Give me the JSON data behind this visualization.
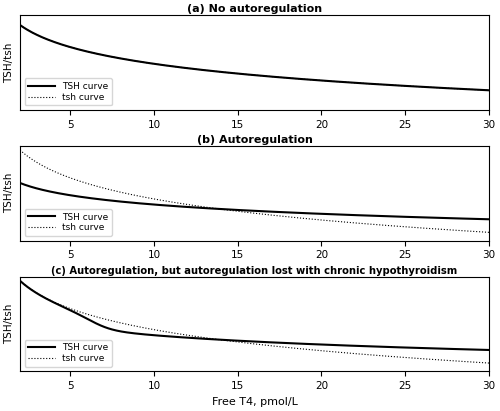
{
  "title_a": "(a) No autoregulation",
  "title_b": "(b) Autoregulation",
  "title_c": "(c) Autoregulation, but autoregulation lost with chronic hypothyroidism",
  "xlabel": "Free T4, pmol/L",
  "ylabel": "TSH/tsh",
  "x_min": 2,
  "x_max": 30,
  "xticks": [
    5,
    10,
    15,
    20,
    25,
    30
  ],
  "legend_TSH": "TSH curve",
  "legend_tsh": "tsh curve",
  "background_color": "#ffffff",
  "line_color": "#000000"
}
